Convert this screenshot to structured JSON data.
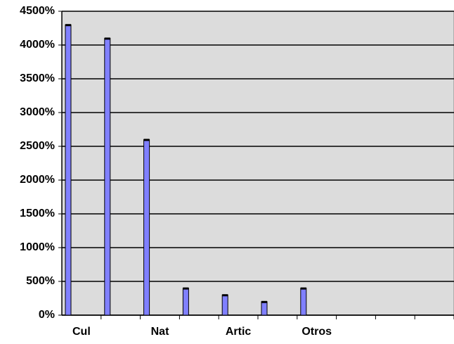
{
  "chart_data": {
    "type": "bar",
    "categories": [
      "Cul",
      null,
      "Nat",
      null,
      "Artic",
      null,
      "Otros",
      null,
      null,
      null
    ],
    "values": [
      4300,
      4100,
      2600,
      400,
      300,
      200,
      400,
      null,
      null,
      null
    ],
    "color": "#8080ff",
    "ylim": [
      0,
      4500
    ],
    "yticks": [
      {
        "value": 0,
        "label": "0%"
      },
      {
        "value": 500,
        "label": "500%"
      },
      {
        "value": 1000,
        "label": "1000%"
      },
      {
        "value": 1500,
        "label": "1500%"
      },
      {
        "value": 2000,
        "label": "2000%"
      },
      {
        "value": 2500,
        "label": "2500%"
      },
      {
        "value": 3000,
        "label": "3000%"
      },
      {
        "value": 3500,
        "label": "3500%"
      },
      {
        "value": 4000,
        "label": "4000%"
      },
      {
        "value": 4500,
        "label": "4500%"
      }
    ],
    "grid": true
  }
}
